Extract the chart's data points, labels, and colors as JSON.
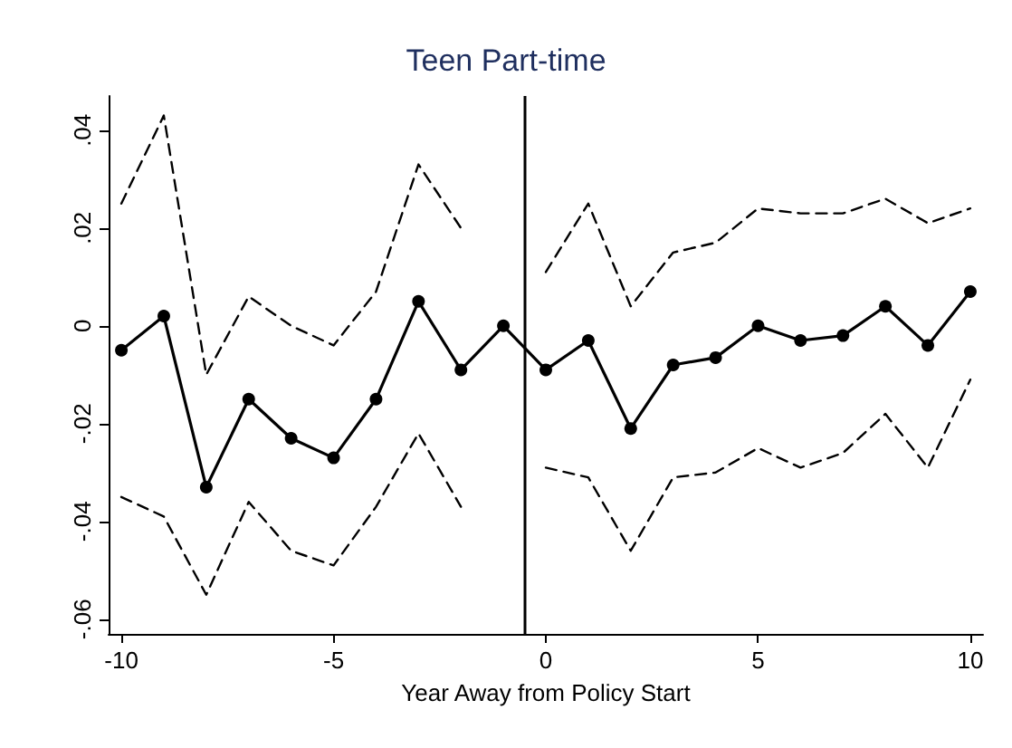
{
  "chart_data": {
    "type": "line",
    "title": "Teen Part-time",
    "xlabel": "Year Away from Policy Start",
    "x": [
      -10,
      -9,
      -8,
      -7,
      -6,
      -5,
      -4,
      -3,
      -2,
      -1,
      0,
      1,
      2,
      3,
      4,
      5,
      6,
      7,
      8,
      9,
      10
    ],
    "series": [
      {
        "color": "#000000",
        "marker": "circle",
        "line_style": "solid",
        "values": [
          -0.005,
          0.002,
          -0.033,
          -0.015,
          -0.023,
          -0.027,
          -0.015,
          0.005,
          -0.009,
          0,
          -0.009,
          -0.003,
          -0.021,
          -0.008,
          -0.0065,
          0,
          -0.003,
          -0.002,
          0.004,
          -0.004,
          0.007
        ]
      },
      {
        "color": "#000000",
        "marker": "none",
        "line_style": "dashed",
        "values": [
          0.025,
          0.043,
          -0.01,
          0.006,
          0,
          -0.004,
          0.007,
          0.033,
          0.02,
          null,
          0.011,
          0.025,
          0.004,
          0.015,
          0.017,
          0.024,
          0.023,
          0.023,
          0.026,
          0.021,
          0.024
        ]
      },
      {
        "color": "#000000",
        "marker": "none",
        "line_style": "dashed",
        "values": [
          -0.035,
          -0.039,
          -0.055,
          -0.036,
          -0.046,
          -0.049,
          -0.037,
          -0.022,
          -0.037,
          null,
          -0.029,
          -0.031,
          -0.046,
          -0.031,
          -0.03,
          -0.025,
          -0.029,
          -0.026,
          -0.018,
          -0.029,
          -0.011
        ]
      }
    ],
    "xlim": [
      -10.3,
      10.3
    ],
    "xticks": [
      -10,
      -5,
      0,
      5,
      10
    ],
    "ylim": [
      -0.063,
      0.047
    ],
    "yticks": [
      {
        "value": -0.06,
        "label": "-.06"
      },
      {
        "value": -0.04,
        "label": "-.04"
      },
      {
        "value": -0.02,
        "label": "-.02"
      },
      {
        "value": 0,
        "label": "0"
      },
      {
        "value": 0.02,
        "label": ".02"
      },
      {
        "value": 0.04,
        "label": ".04"
      }
    ],
    "ref_lines": [
      {
        "axis": "x",
        "value": -0.5,
        "color": "#000000",
        "line_style": "solid"
      }
    ],
    "grid": false,
    "legend": false
  }
}
